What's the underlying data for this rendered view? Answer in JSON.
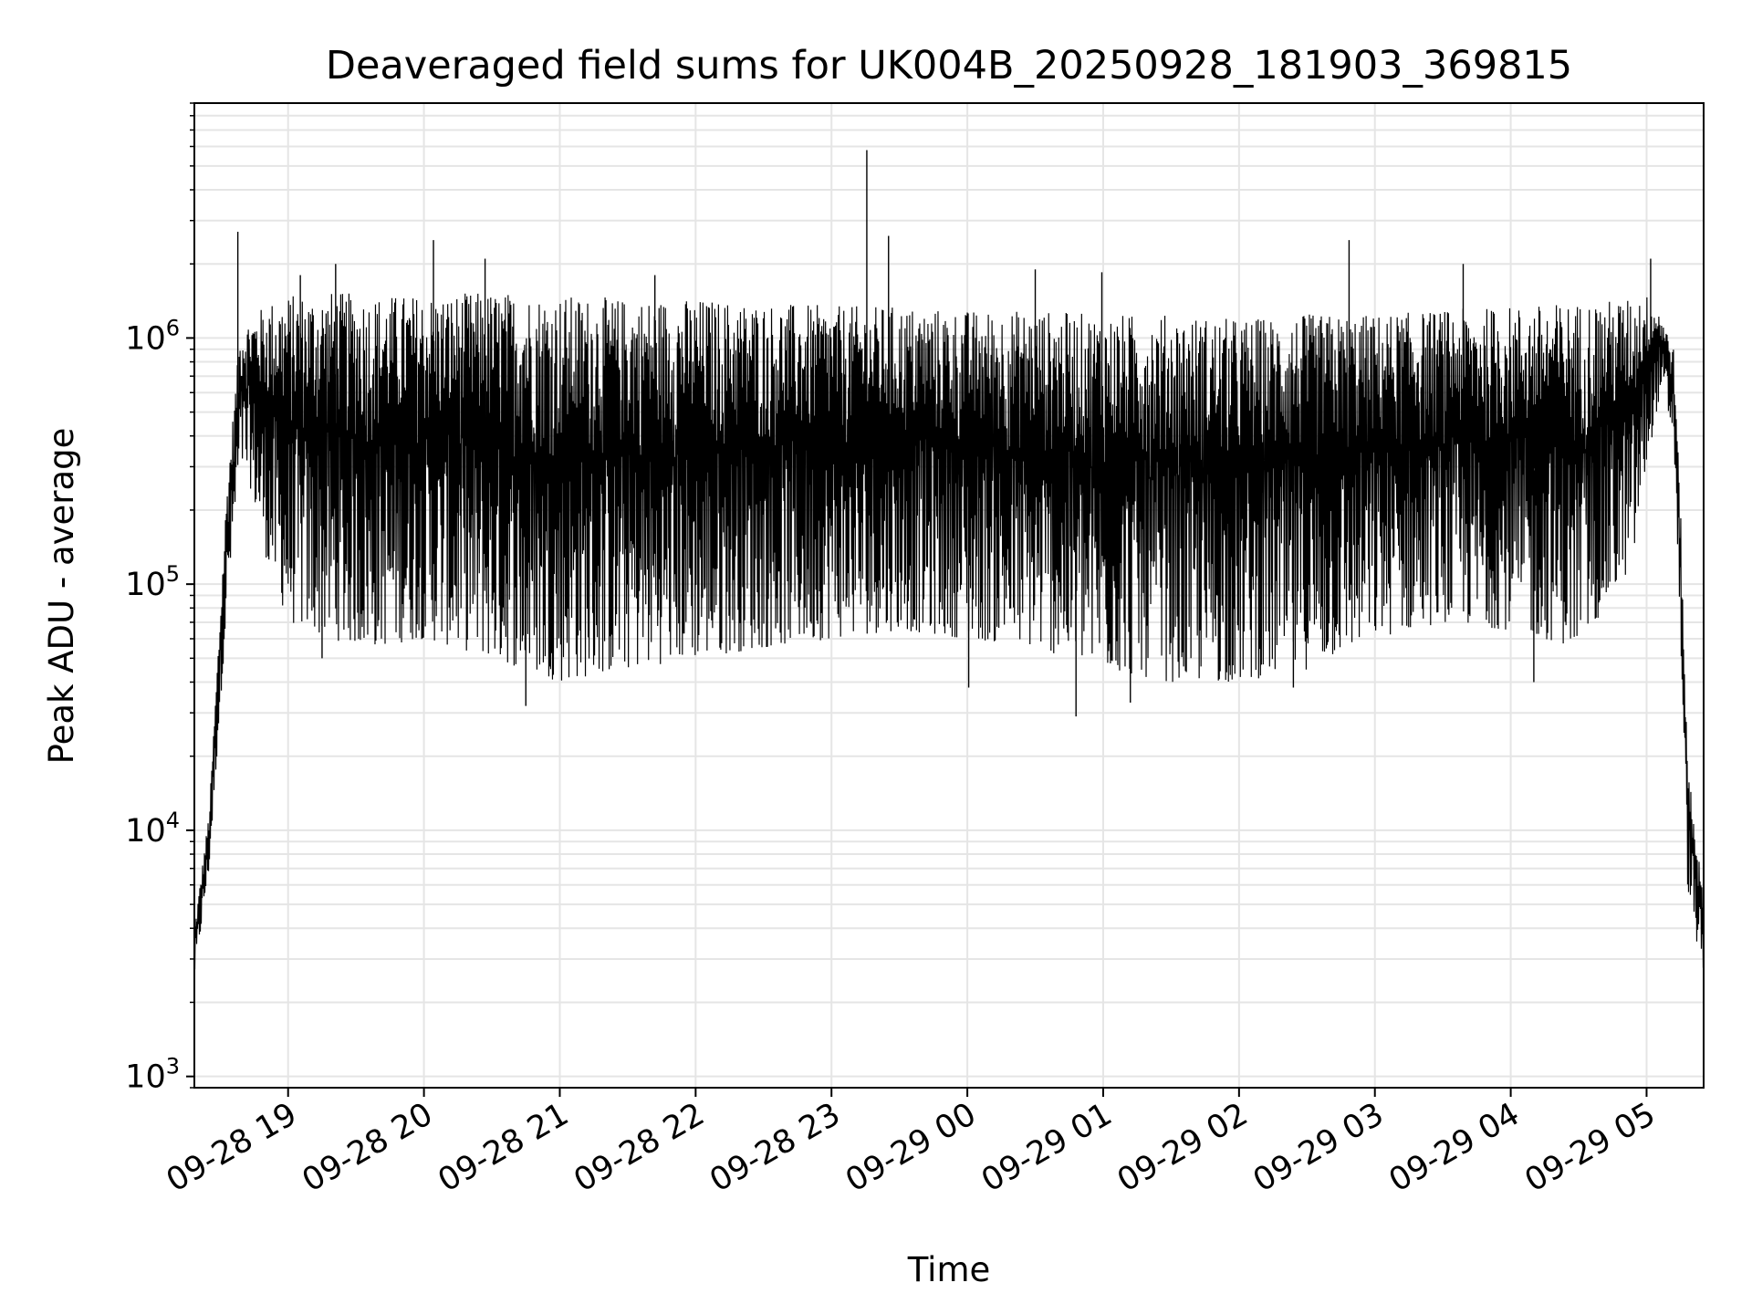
{
  "chart_data": {
    "type": "line",
    "title": "Deaveraged field sums for UK004B_20250928_181903_369815",
    "xlabel": "Time",
    "ylabel": "Peak ADU - average",
    "yscale": "log",
    "ylim": [
      900,
      9000000
    ],
    "xlim_hours_since_0928_18": [
      0.31,
      11.42
    ],
    "grid": true,
    "line_color": "#000000",
    "grid_color": "#e5e5e5",
    "x_ticks": [
      {
        "label": "09-28 19",
        "hour": 1
      },
      {
        "label": "09-28 20",
        "hour": 2
      },
      {
        "label": "09-28 21",
        "hour": 3
      },
      {
        "label": "09-28 22",
        "hour": 4
      },
      {
        "label": "09-28 23",
        "hour": 5
      },
      {
        "label": "09-29 00",
        "hour": 6
      },
      {
        "label": "09-29 01",
        "hour": 7
      },
      {
        "label": "09-29 02",
        "hour": 8
      },
      {
        "label": "09-29 03",
        "hour": 9
      },
      {
        "label": "09-29 04",
        "hour": 10
      },
      {
        "label": "09-29 05",
        "hour": 11
      }
    ],
    "y_ticks": [
      {
        "base": "10",
        "exp": "3",
        "value": 1000
      },
      {
        "base": "10",
        "exp": "4",
        "value": 10000
      },
      {
        "base": "10",
        "exp": "5",
        "value": 100000
      },
      {
        "base": "10",
        "exp": "6",
        "value": 1000000
      }
    ],
    "envelope": {
      "hours": [
        0.31,
        0.42,
        0.55,
        0.65,
        0.72,
        0.85,
        1.0,
        1.3,
        1.6,
        2.0,
        2.5,
        3.0,
        3.5,
        4.0,
        4.5,
        5.0,
        5.5,
        6.0,
        6.5,
        7.0,
        7.5,
        8.0,
        8.5,
        9.0,
        9.5,
        10.0,
        10.5,
        10.9,
        11.0,
        11.1,
        11.2,
        11.25,
        11.3,
        11.35,
        11.42
      ],
      "upper": [
        4000,
        12000,
        250000,
        1100000,
        1200000,
        1400000,
        1500000,
        1550000,
        1500000,
        1500000,
        1550000,
        1500000,
        1450000,
        1450000,
        1400000,
        1350000,
        1350000,
        1300000,
        1300000,
        1250000,
        1250000,
        1200000,
        1250000,
        1250000,
        1300000,
        1350000,
        1400000,
        1450000,
        1500000,
        1300000,
        900000,
        200000,
        20000,
        12000,
        5000
      ],
      "lower": [
        2500,
        7000,
        80000,
        300000,
        250000,
        120000,
        70000,
        60000,
        55000,
        60000,
        50000,
        40000,
        45000,
        50000,
        55000,
        60000,
        65000,
        60000,
        55000,
        45000,
        40000,
        40000,
        45000,
        60000,
        70000,
        65000,
        55000,
        120000,
        300000,
        600000,
        400000,
        60000,
        6000,
        4000,
        2500
      ]
    },
    "spikes": [
      {
        "hour": 0.63,
        "value": 2700000
      },
      {
        "hour": 1.09,
        "value": 1800000
      },
      {
        "hour": 1.35,
        "value": 2000000
      },
      {
        "hour": 2.07,
        "value": 2500000
      },
      {
        "hour": 2.45,
        "value": 2100000
      },
      {
        "hour": 3.7,
        "value": 1800000
      },
      {
        "hour": 5.26,
        "value": 5800000
      },
      {
        "hour": 5.42,
        "value": 2600000
      },
      {
        "hour": 6.5,
        "value": 1900000
      },
      {
        "hour": 6.99,
        "value": 1850000
      },
      {
        "hour": 8.81,
        "value": 2500000
      },
      {
        "hour": 9.65,
        "value": 2000000
      },
      {
        "hour": 11.03,
        "value": 2100000
      }
    ],
    "dips": [
      {
        "hour": 1.25,
        "value": 50000
      },
      {
        "hour": 2.75,
        "value": 32000
      },
      {
        "hour": 6.01,
        "value": 38000
      },
      {
        "hour": 6.8,
        "value": 29000
      },
      {
        "hour": 7.2,
        "value": 33000
      },
      {
        "hour": 8.4,
        "value": 38000
      },
      {
        "hour": 10.17,
        "value": 40000
      }
    ]
  }
}
